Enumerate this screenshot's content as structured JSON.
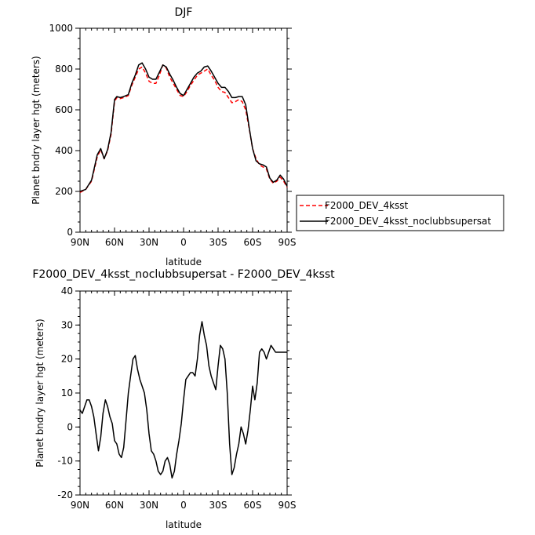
{
  "chart_data": [
    {
      "type": "line",
      "title": "DJF",
      "xlabel": "latitude",
      "ylabel": "Planet bndry layer hgt (meters)",
      "xlim": [
        90,
        -90
      ],
      "ylim": [
        0,
        1000
      ],
      "x_ticks": [
        90,
        60,
        30,
        0,
        -30,
        -60,
        -90
      ],
      "x_tick_labels": [
        "90N",
        "60N",
        "30N",
        "0",
        "30S",
        "60S",
        "90S"
      ],
      "y_ticks": [
        0,
        200,
        400,
        600,
        800,
        1000
      ],
      "y_tick_labels": [
        "0",
        "200",
        "400",
        "600",
        "800",
        "1000"
      ],
      "legend_position": "right",
      "series": [
        {
          "name": "F2000_DEV_4ksst",
          "color": "#ff0000",
          "dash": "dashed",
          "x": [
            90,
            85,
            80,
            75,
            72,
            69,
            66,
            63,
            60,
            58,
            55,
            52,
            48,
            45,
            42,
            39,
            36,
            33,
            30,
            27,
            24,
            21,
            18,
            15,
            12,
            9,
            6,
            3,
            0,
            -3,
            -6,
            -9,
            -12,
            -15,
            -18,
            -21,
            -24,
            -27,
            -30,
            -33,
            -36,
            -39,
            -42,
            -45,
            -48,
            -51,
            -54,
            -57,
            -60,
            -63,
            -66,
            -69,
            -72,
            -75,
            -78,
            -81,
            -84,
            -87,
            -90
          ],
          "y": [
            195,
            210,
            250,
            370,
            405,
            360,
            400,
            480,
            640,
            660,
            655,
            660,
            670,
            720,
            760,
            800,
            810,
            780,
            740,
            730,
            730,
            770,
            820,
            805,
            760,
            730,
            700,
            670,
            665,
            690,
            720,
            745,
            770,
            780,
            790,
            800,
            770,
            745,
            710,
            690,
            685,
            660,
            635,
            640,
            650,
            640,
            600,
            510,
            410,
            360,
            330,
            320,
            310,
            260,
            240,
            250,
            270,
            250,
            220
          ]
        },
        {
          "name": "F2000_DEV_4ksst_noclubbsupersat",
          "color": "#000000",
          "dash": "solid",
          "x": [
            90,
            85,
            80,
            75,
            72,
            69,
            66,
            63,
            60,
            58,
            55,
            52,
            48,
            45,
            42,
            39,
            36,
            33,
            30,
            27,
            24,
            21,
            18,
            15,
            12,
            9,
            6,
            3,
            0,
            -3,
            -6,
            -9,
            -12,
            -15,
            -18,
            -21,
            -24,
            -27,
            -30,
            -33,
            -36,
            -39,
            -42,
            -45,
            -48,
            -51,
            -54,
            -57,
            -60,
            -63,
            -66,
            -69,
            -72,
            -75,
            -78,
            -81,
            -84,
            -87,
            -90
          ],
          "y": [
            200,
            210,
            255,
            380,
            410,
            360,
            405,
            490,
            650,
            665,
            660,
            665,
            675,
            730,
            770,
            820,
            830,
            800,
            760,
            750,
            750,
            785,
            820,
            810,
            775,
            745,
            710,
            680,
            670,
            700,
            730,
            760,
            780,
            790,
            810,
            815,
            790,
            760,
            730,
            710,
            710,
            690,
            660,
            660,
            665,
            665,
            625,
            515,
            410,
            350,
            335,
            330,
            320,
            265,
            245,
            255,
            280,
            260,
            225
          ]
        }
      ]
    },
    {
      "type": "line",
      "title": "F2000_DEV_4ksst_noclubbsupersat - F2000_DEV_4ksst",
      "xlabel": "latitude",
      "ylabel": "Planet bndry layer hgt (meters)",
      "xlim": [
        90,
        -90
      ],
      "ylim": [
        -20,
        40
      ],
      "x_ticks": [
        90,
        60,
        30,
        0,
        -30,
        -60,
        -90
      ],
      "x_tick_labels": [
        "90N",
        "60N",
        "30N",
        "0",
        "30S",
        "60S",
        "90S"
      ],
      "y_ticks": [
        -20,
        -10,
        0,
        10,
        20,
        30,
        40
      ],
      "y_tick_labels": [
        "-20",
        "-10",
        "0",
        "10",
        "20",
        "30",
        "40"
      ],
      "series": [
        {
          "color": "#000000",
          "dash": "solid",
          "x": [
            90,
            88,
            86,
            84,
            82,
            80,
            78,
            76,
            74,
            72,
            70,
            68,
            66,
            64,
            62,
            60,
            58,
            56,
            54,
            52,
            50,
            48,
            46,
            44,
            42,
            40,
            38,
            36,
            34,
            32,
            30,
            28,
            26,
            24,
            22,
            20,
            18,
            16,
            14,
            12,
            10,
            8,
            6,
            4,
            2,
            0,
            -2,
            -4,
            -6,
            -8,
            -10,
            -12,
            -14,
            -16,
            -18,
            -20,
            -22,
            -24,
            -26,
            -28,
            -30,
            -32,
            -34,
            -36,
            -38,
            -40,
            -42,
            -44,
            -46,
            -48,
            -50,
            -52,
            -54,
            -56,
            -58,
            -60,
            -62,
            -64,
            -66,
            -68,
            -70,
            -72,
            -74,
            -76,
            -78,
            -80,
            -82,
            -84,
            -86,
            -88,
            -90
          ],
          "y": [
            5,
            4,
            6,
            8,
            8,
            6,
            3,
            -2,
            -7,
            -3,
            4,
            8,
            6,
            3,
            1,
            -4,
            -5,
            -8,
            -9,
            -6,
            2,
            10,
            15,
            20,
            21,
            17,
            14,
            12,
            10,
            5,
            -2,
            -7,
            -8,
            -10,
            -13,
            -14,
            -13,
            -10,
            -9,
            -11,
            -15,
            -13,
            -8,
            -4,
            1,
            8,
            14,
            15,
            16,
            16,
            15,
            20,
            27,
            31,
            27,
            24,
            18,
            15,
            13,
            11,
            18,
            24,
            23,
            20,
            10,
            -5,
            -14,
            -12,
            -8,
            -5,
            0,
            -2,
            -5,
            -1,
            5,
            12,
            8,
            13,
            22,
            23,
            22,
            20,
            22,
            24,
            23,
            22,
            22,
            22,
            22,
            22,
            22
          ]
        }
      ]
    }
  ]
}
